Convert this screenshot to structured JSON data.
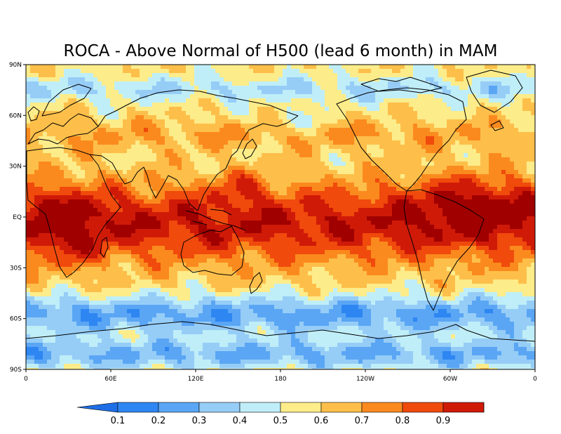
{
  "title": "ROCA - Above Normal of H500 (lead 6 month) in MAM",
  "map": {
    "lat_labels": [
      "90N",
      "60N",
      "30N",
      "EQ",
      "30S",
      "60S",
      "90S"
    ],
    "lon_labels": [
      "0",
      "60E",
      "120E",
      "180",
      "120W",
      "60W",
      "0"
    ]
  },
  "colorbar": {
    "labels": [
      "0.1",
      "0.2",
      "0.3",
      "0.4",
      "0.5",
      "0.6",
      "0.7",
      "0.8",
      "0.9"
    ],
    "colors": [
      "#1e6ee6",
      "#2e86f2",
      "#5aa6f5",
      "#96cdf7",
      "#bfeef8",
      "#fdec8a",
      "#fdbf4a",
      "#fb8a1e",
      "#f04a0c",
      "#d01a08",
      "#a00000"
    ]
  }
}
